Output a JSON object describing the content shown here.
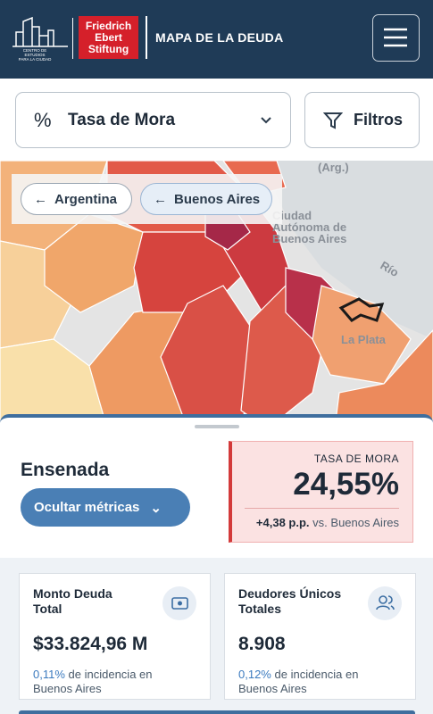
{
  "header": {
    "logo_caption": [
      "CENTRO DE ESTUDIOS",
      "PARA LA CIUDAD"
    ],
    "brand": [
      "Friedrich",
      "Ebert",
      "Stiftung"
    ],
    "title": "MAPA DE LA DEUDA"
  },
  "toolbar": {
    "metric_icon": "%",
    "metric": "Tasa de Mora",
    "filters": "Filtros"
  },
  "map": {
    "breadcrumbs": [
      "Argentina",
      "Buenos Aires"
    ],
    "labels": [
      "(Arg.)",
      "Ciudad",
      "Autónoma de",
      "Buenos Aires",
      "Río",
      "La Plata"
    ]
  },
  "panel": {
    "name": "Ensenada",
    "toggle": "Ocultar métricas",
    "highlight": {
      "label": "TASA DE MORA",
      "value": "24,55%",
      "delta": "+4,38 p.p.",
      "comparison": "vs. Buenos Aires"
    },
    "cards": [
      {
        "title": "Monto Deuda Total",
        "value": "$33.824,96 M",
        "pct": "0,11%",
        "note": "de incidencia en Buenos Aires"
      },
      {
        "title": "Deudores Únicos Totales",
        "value": "8.908",
        "pct": "0,12%",
        "note": "de incidencia en Buenos Aires"
      }
    ]
  }
}
